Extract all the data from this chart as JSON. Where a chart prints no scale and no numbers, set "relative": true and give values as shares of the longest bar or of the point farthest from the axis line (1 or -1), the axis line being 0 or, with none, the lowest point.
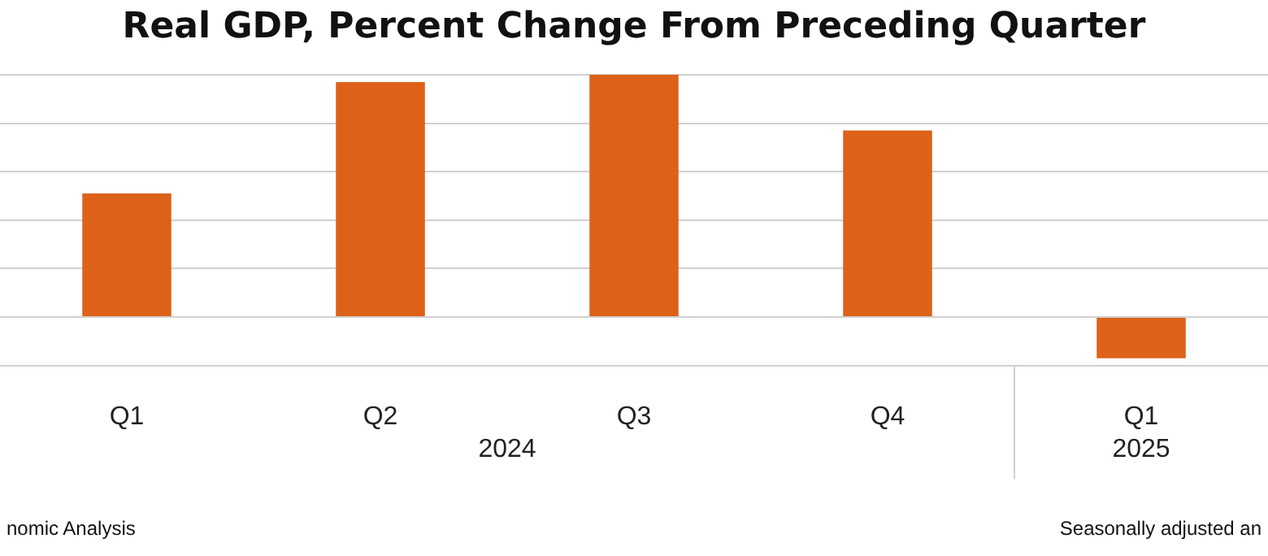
{
  "chart_data": {
    "type": "bar",
    "title": "Real GDP, Percent Change From Preceding Quarter",
    "categories": [
      "Q1",
      "Q2",
      "Q3",
      "Q4",
      "Q1"
    ],
    "values": [
      0.51,
      0.97,
      1,
      0.77,
      -0.17
    ],
    "color": "#dd6119",
    "relative": true,
    "grid": "y",
    "legend": false,
    "annotations": [
      "2024",
      "2025",
      "nomic Analysis",
      "Seasonally adjusted an"
    ]
  }
}
